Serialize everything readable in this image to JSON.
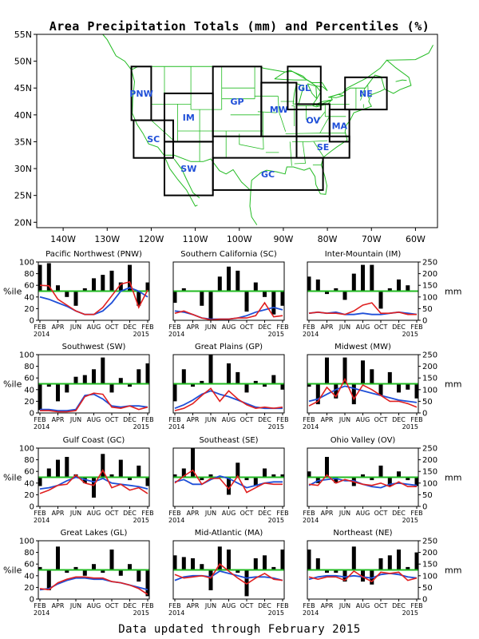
{
  "figure": {
    "title": "Area Precipitation Totals (mm) and Percentiles (%)",
    "footer": "Data updated through February 2015"
  },
  "map": {
    "lat_ticks": [
      "55N",
      "50N",
      "45N",
      "40N",
      "35N",
      "30N",
      "25N",
      "20N"
    ],
    "lon_ticks": [
      "140W",
      "130W",
      "120W",
      "110W",
      "100W",
      "90W",
      "80W",
      "70W",
      "60W"
    ],
    "extent": {
      "lon_min": -146,
      "lon_max": -55,
      "lat_min": 19,
      "lat_max": 55
    },
    "region_color": "#1f4fd8",
    "border_color": "#22bb22",
    "regions": [
      {
        "code": "PNW",
        "lon": [
          -124.5,
          -120
        ],
        "lat": [
          39,
          49
        ]
      },
      {
        "code": "SC",
        "lon": [
          -124,
          -115
        ],
        "lat": [
          32,
          39
        ]
      },
      {
        "code": "IM",
        "lon": [
          -117,
          -106
        ],
        "lat": [
          35,
          44
        ]
      },
      {
        "code": "SW",
        "lon": [
          -117,
          -106
        ],
        "lat": [
          25,
          35
        ]
      },
      {
        "code": "GP",
        "lon": [
          -106,
          -95
        ],
        "lat": [
          36,
          49
        ]
      },
      {
        "code": "MW",
        "lon": [
          -95,
          -87
        ],
        "lat": [
          36,
          46
        ]
      },
      {
        "code": "GL",
        "lon": [
          -89,
          -81.5
        ],
        "lat": [
          41,
          49
        ]
      },
      {
        "code": "NE",
        "lon": [
          -76,
          -66.5
        ],
        "lat": [
          41,
          47
        ]
      },
      {
        "code": "OV",
        "lon": [
          -87,
          -79.5
        ],
        "lat": [
          36,
          42
        ]
      },
      {
        "code": "MA",
        "lon": [
          -79.5,
          -75
        ],
        "lat": [
          35,
          41
        ]
      },
      {
        "code": "SE",
        "lon": [
          -87,
          -75
        ],
        "lat": [
          32,
          36
        ]
      },
      {
        "code": "GC",
        "lon": [
          -106,
          -81
        ],
        "lat": [
          26,
          32
        ]
      }
    ]
  },
  "panel_axes": {
    "left_label": "%ile",
    "right_label": "mm",
    "pct_ticks": [
      "0",
      "20",
      "40",
      "60",
      "80",
      "100"
    ],
    "mm_ticks": [
      "0",
      "50",
      "100",
      "150",
      "200",
      "250"
    ],
    "month_ticks": [
      "FEB",
      "APR",
      "JUN",
      "AUG",
      "OCT",
      "DEC",
      "FEB"
    ],
    "year_start": "2014",
    "year_end": "2015",
    "colors": {
      "bars": "#000000",
      "percentile50": "#22bb22",
      "observed": "#e02020",
      "normal": "#1f4fd8"
    }
  },
  "chart_data": [
    {
      "type": "bar+line",
      "title": "Pacific Northwest (PNW)",
      "months": [
        "Feb 2014",
        "Mar 2014",
        "Apr 2014",
        "May 2014",
        "Jun 2014",
        "Jul 2014",
        "Aug 2014",
        "Sep 2014",
        "Oct 2014",
        "Nov 2014",
        "Dec 2014",
        "Jan 2015",
        "Feb 2015"
      ],
      "percentile": [
        95,
        98,
        60,
        40,
        25,
        55,
        72,
        78,
        85,
        65,
        95,
        25,
        65
      ],
      "observed_mm": [
        150,
        148,
        90,
        65,
        40,
        25,
        25,
        55,
        105,
        155,
        165,
        55,
        130
      ],
      "normal_mm": [
        100,
        90,
        75,
        60,
        40,
        25,
        25,
        40,
        75,
        125,
        140,
        125,
        100
      ]
    },
    {
      "type": "bar+line",
      "title": "Southern California (SC)",
      "months": [
        "Feb 2014",
        "Mar 2014",
        "Apr 2014",
        "May 2014",
        "Jun 2014",
        "Jul 2014",
        "Aug 2014",
        "Sep 2014",
        "Oct 2014",
        "Nov 2014",
        "Dec 2014",
        "Jan 2015",
        "Feb 2015"
      ],
      "percentile": [
        30,
        55,
        50,
        25,
        0,
        75,
        92,
        85,
        15,
        65,
        40,
        10,
        25
      ],
      "observed_mm": [
        30,
        40,
        25,
        10,
        2,
        5,
        5,
        10,
        10,
        20,
        75,
        15,
        20
      ],
      "normal_mm": [
        40,
        35,
        25,
        10,
        5,
        5,
        5,
        10,
        20,
        35,
        45,
        55,
        45
      ]
    },
    {
      "type": "bar+line",
      "title": "Inter-Mountain (IM)",
      "months": [
        "Feb 2014",
        "Mar 2014",
        "Apr 2014",
        "May 2014",
        "Jun 2014",
        "Jul 2014",
        "Aug 2014",
        "Sep 2014",
        "Oct 2014",
        "Nov 2014",
        "Dec 2014",
        "Jan 2015",
        "Feb 2015"
      ],
      "percentile": [
        75,
        70,
        45,
        55,
        35,
        80,
        95,
        95,
        20,
        55,
        70,
        60,
        50
      ],
      "observed_mm": [
        30,
        35,
        30,
        30,
        25,
        40,
        65,
        75,
        30,
        30,
        35,
        25,
        25
      ],
      "normal_mm": [
        30,
        35,
        30,
        35,
        25,
        25,
        30,
        25,
        25,
        30,
        35,
        30,
        25
      ]
    },
    {
      "type": "bar+line",
      "title": "Southwest (SW)",
      "months": [
        "Feb 2014",
        "Mar 2014",
        "Apr 2014",
        "May 2014",
        "Jun 2014",
        "Jul 2014",
        "Aug 2014",
        "Sep 2014",
        "Oct 2014",
        "Nov 2014",
        "Dec 2014",
        "Jan 2015",
        "Feb 2015"
      ],
      "percentile": [
        5,
        45,
        20,
        35,
        62,
        65,
        75,
        95,
        35,
        60,
        45,
        75,
        85
      ],
      "observed_mm": [
        10,
        10,
        5,
        5,
        10,
        70,
        85,
        80,
        25,
        20,
        30,
        15,
        25
      ],
      "normal_mm": [
        15,
        15,
        10,
        10,
        15,
        75,
        80,
        60,
        30,
        25,
        30,
        30,
        25
      ]
    },
    {
      "type": "bar+line",
      "title": "Great Plains (GP)",
      "months": [
        "Feb 2014",
        "Mar 2014",
        "Apr 2014",
        "May 2014",
        "Jun 2014",
        "Jul 2014",
        "Aug 2014",
        "Sep 2014",
        "Oct 2014",
        "Nov 2014",
        "Dec 2014",
        "Jan 2015",
        "Feb 2015"
      ],
      "percentile": [
        20,
        75,
        45,
        55,
        100,
        50,
        85,
        70,
        35,
        55,
        45,
        65,
        40
      ],
      "observed_mm": [
        10,
        20,
        40,
        75,
        105,
        50,
        95,
        60,
        35,
        20,
        25,
        20,
        25
      ],
      "normal_mm": [
        20,
        35,
        55,
        80,
        95,
        80,
        70,
        55,
        40,
        25,
        20,
        20,
        20
      ]
    },
    {
      "type": "bar+line",
      "title": "Midwest (MW)",
      "months": [
        "Feb 2014",
        "Mar 2014",
        "Apr 2014",
        "May 2014",
        "Jun 2014",
        "Jul 2014",
        "Aug 2014",
        "Sep 2014",
        "Oct 2014",
        "Nov 2014",
        "Dec 2014",
        "Jan 2015",
        "Feb 2015"
      ],
      "percentile": [
        45,
        15,
        95,
        25,
        95,
        15,
        90,
        75,
        30,
        70,
        35,
        40,
        25
      ],
      "observed_mm": [
        30,
        50,
        110,
        70,
        145,
        60,
        120,
        100,
        75,
        50,
        50,
        40,
        25
      ],
      "normal_mm": [
        50,
        60,
        80,
        100,
        115,
        105,
        95,
        85,
        75,
        65,
        55,
        50,
        45
      ]
    },
    {
      "type": "bar+line",
      "title": "Gulf Coast (GC)",
      "months": [
        "Feb 2014",
        "Mar 2014",
        "Apr 2014",
        "May 2014",
        "Jun 2014",
        "Jul 2014",
        "Aug 2014",
        "Sep 2014",
        "Oct 2014",
        "Nov 2014",
        "Dec 2014",
        "Jan 2015",
        "Feb 2015"
      ],
      "percentile": [
        35,
        65,
        80,
        85,
        55,
        40,
        15,
        90,
        55,
        80,
        45,
        70,
        35
      ],
      "observed_mm": [
        55,
        70,
        90,
        95,
        135,
        100,
        90,
        155,
        80,
        95,
        70,
        80,
        55
      ],
      "normal_mm": [
        75,
        80,
        90,
        110,
        125,
        115,
        105,
        120,
        100,
        95,
        90,
        85,
        75
      ]
    },
    {
      "type": "bar+line",
      "title": "Southeast (SE)",
      "months": [
        "Feb 2014",
        "Mar 2014",
        "Apr 2014",
        "May 2014",
        "Jun 2014",
        "Jul 2014",
        "Aug 2014",
        "Sep 2014",
        "Oct 2014",
        "Nov 2014",
        "Dec 2014",
        "Jan 2015",
        "Feb 2015"
      ],
      "percentile": [
        55,
        65,
        100,
        45,
        55,
        50,
        20,
        75,
        45,
        35,
        65,
        55,
        55
      ],
      "observed_mm": [
        100,
        130,
        155,
        95,
        120,
        120,
        75,
        130,
        60,
        80,
        100,
        95,
        95
      ],
      "normal_mm": [
        105,
        115,
        95,
        95,
        115,
        130,
        120,
        100,
        80,
        90,
        100,
        105,
        105
      ]
    },
    {
      "type": "bar+line",
      "title": "Ohio Valley (OV)",
      "months": [
        "Feb 2014",
        "Mar 2014",
        "Apr 2014",
        "May 2014",
        "Jun 2014",
        "Jul 2014",
        "Aug 2014",
        "Sep 2014",
        "Oct 2014",
        "Nov 2014",
        "Dec 2014",
        "Jan 2015",
        "Feb 2015"
      ],
      "percentile": [
        60,
        40,
        85,
        40,
        50,
        35,
        55,
        45,
        70,
        35,
        60,
        45,
        35
      ],
      "observed_mm": [
        95,
        90,
        135,
        100,
        115,
        105,
        95,
        90,
        100,
        85,
        105,
        85,
        85
      ],
      "normal_mm": [
        90,
        110,
        115,
        120,
        110,
        110,
        95,
        85,
        80,
        95,
        100,
        95,
        90
      ]
    },
    {
      "type": "bar+line",
      "title": "Great Lakes (GL)",
      "months": [
        "Feb 2014",
        "Mar 2014",
        "Apr 2014",
        "May 2014",
        "Jun 2014",
        "Jul 2014",
        "Aug 2014",
        "Sep 2014",
        "Oct 2014",
        "Nov 2014",
        "Dec 2014",
        "Jan 2015",
        "Feb 2015"
      ],
      "percentile": [
        55,
        15,
        90,
        45,
        55,
        40,
        60,
        45,
        85,
        40,
        60,
        30,
        5
      ],
      "observed_mm": [
        45,
        40,
        70,
        85,
        95,
        95,
        90,
        90,
        75,
        70,
        60,
        45,
        20
      ],
      "normal_mm": [
        40,
        45,
        65,
        80,
        90,
        90,
        85,
        85,
        75,
        70,
        60,
        50,
        40
      ]
    },
    {
      "type": "bar+line",
      "title": "Mid-Atlantic (MA)",
      "months": [
        "Feb 2014",
        "Mar 2014",
        "Apr 2014",
        "May 2014",
        "Jun 2014",
        "Jul 2014",
        "Aug 2014",
        "Sep 2014",
        "Oct 2014",
        "Nov 2014",
        "Dec 2014",
        "Jan 2015",
        "Feb 2015"
      ],
      "percentile": [
        75,
        72,
        70,
        60,
        15,
        90,
        85,
        45,
        5,
        70,
        75,
        55,
        85
      ],
      "observed_mm": [
        105,
        90,
        95,
        100,
        90,
        150,
        120,
        90,
        65,
        90,
        110,
        85,
        80
      ],
      "normal_mm": [
        80,
        95,
        100,
        100,
        95,
        120,
        110,
        100,
        90,
        95,
        95,
        90,
        80
      ]
    },
    {
      "type": "bar+line",
      "title": "Northeast (NE)",
      "months": [
        "Feb 2014",
        "Mar 2014",
        "Apr 2014",
        "May 2014",
        "Jun 2014",
        "Jul 2014",
        "Aug 2014",
        "Sep 2014",
        "Oct 2014",
        "Nov 2014",
        "Dec 2014",
        "Jan 2015",
        "Feb 2015"
      ],
      "percentile": [
        85,
        70,
        45,
        45,
        30,
        90,
        30,
        25,
        70,
        75,
        85,
        55,
        80
      ],
      "observed_mm": [
        95,
        85,
        95,
        95,
        80,
        120,
        95,
        75,
        115,
        110,
        115,
        80,
        90
      ],
      "normal_mm": [
        85,
        95,
        100,
        100,
        95,
        100,
        95,
        90,
        105,
        110,
        105,
        95,
        90
      ]
    }
  ]
}
